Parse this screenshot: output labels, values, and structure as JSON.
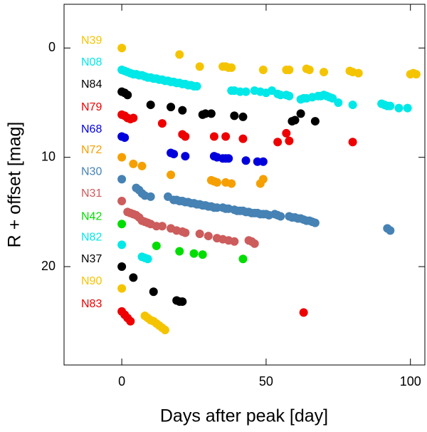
{
  "chart_data": {
    "type": "scatter",
    "xlabel": "Days after peak [day]",
    "ylabel": "R + offset [mag]",
    "xlim": [
      -20,
      105
    ],
    "xticks": [
      0,
      50,
      100
    ],
    "ylim": [
      -4,
      29
    ],
    "yticks": [
      0,
      10,
      20
    ],
    "y_inverted": true,
    "series": [
      {
        "name": "N39",
        "color": "#f5c400",
        "x": [
          0,
          20,
          27,
          35,
          36,
          37,
          38,
          49,
          57,
          58,
          64,
          65,
          70,
          79,
          80,
          82,
          100,
          101,
          102
        ],
        "values": [
          0,
          0.6,
          1.7,
          1.7,
          1.7,
          1.8,
          1.8,
          2.0,
          2.0,
          2.0,
          1.9,
          2.0,
          2.2,
          2.1,
          2.2,
          2.3,
          2.4,
          2.3,
          2.4
        ]
      },
      {
        "name": "N08",
        "color": "#00e8e8",
        "x": [
          0,
          1,
          2,
          3,
          4,
          5,
          6,
          7,
          8,
          9,
          10,
          11,
          12,
          13,
          14,
          15,
          16,
          17,
          18,
          19,
          20,
          21,
          22,
          23,
          24,
          25,
          26,
          38,
          39,
          41,
          43,
          46,
          48,
          50,
          52,
          54,
          55,
          57,
          58,
          62,
          63,
          64,
          66,
          68,
          69,
          70,
          71,
          72,
          73,
          75,
          80,
          90,
          91,
          92,
          93,
          96,
          99
        ],
        "values": [
          2.0,
          2.1,
          2.2,
          2.3,
          2.4,
          2.4,
          2.5,
          2.5,
          2.6,
          2.7,
          2.7,
          2.8,
          2.8,
          2.9,
          2.9,
          3.0,
          3.0,
          3.1,
          3.1,
          3.2,
          3.2,
          3.3,
          3.3,
          3.4,
          3.4,
          3.5,
          3.5,
          3.9,
          3.9,
          4.0,
          4.0,
          3.9,
          4.0,
          4.1,
          3.9,
          4.2,
          4.3,
          4.3,
          4.4,
          4.7,
          4.6,
          4.6,
          4.5,
          4.4,
          4.4,
          4.3,
          4.4,
          4.5,
          4.6,
          5.0,
          5.2,
          5.1,
          5.2,
          5.3,
          5.3,
          5.5,
          5.5
        ]
      },
      {
        "name": "N84",
        "color": "#000000",
        "x": [
          0,
          1,
          2,
          10,
          17,
          21,
          28,
          29,
          31,
          39,
          42,
          59,
          60,
          62,
          67
        ],
        "values": [
          4.0,
          4.1,
          4.3,
          5.2,
          5.4,
          5.7,
          6.1,
          6.0,
          6.0,
          6.2,
          6.3,
          6.7,
          6.6,
          6.0,
          6.7
        ]
      },
      {
        "name": "N79",
        "color": "#ee0000",
        "x": [
          0,
          1,
          2,
          3,
          4,
          14,
          21,
          22,
          32,
          36,
          42,
          54,
          57,
          58,
          80
        ],
        "values": [
          6.1,
          6.2,
          6.4,
          6.5,
          6.4,
          6.9,
          7.9,
          8.1,
          8.1,
          8.1,
          8.3,
          8.6,
          7.8,
          8.5,
          8.6
        ]
      },
      {
        "name": "N68",
        "color": "#0000dd",
        "x": [
          0,
          1,
          17,
          18,
          22,
          32,
          33,
          35,
          36,
          37,
          43,
          47,
          49
        ],
        "values": [
          8.1,
          8.2,
          9.6,
          9.7,
          9.9,
          9.9,
          10.0,
          10.1,
          10.1,
          10.1,
          10.3,
          10.4,
          10.4
        ]
      },
      {
        "name": "N72",
        "color": "#f5a000",
        "x": [
          0,
          4,
          7,
          17,
          31,
          32,
          33,
          36,
          38,
          48,
          49
        ],
        "values": [
          10.0,
          10.6,
          10.8,
          11.6,
          12.1,
          12.2,
          12.3,
          12.3,
          12.4,
          12.4,
          12.0
        ]
      },
      {
        "name": "N30",
        "color": "#4682b4",
        "x": [
          0,
          5,
          6,
          7,
          8,
          10,
          16,
          18,
          19,
          20,
          21,
          22,
          23,
          24,
          25,
          26,
          27,
          28,
          29,
          30,
          31,
          32,
          33,
          35,
          36,
          37,
          39,
          40,
          41,
          42,
          43,
          44,
          45,
          46,
          47,
          48,
          49,
          50,
          51,
          53,
          54,
          55,
          58,
          59,
          60,
          61,
          62,
          63,
          64,
          65,
          66,
          67,
          92,
          93
        ],
        "values": [
          12.0,
          12.8,
          13.0,
          13.3,
          13.5,
          13.6,
          13.6,
          13.9,
          13.9,
          14.0,
          14.0,
          14.1,
          14.1,
          14.2,
          14.2,
          14.3,
          14.3,
          14.4,
          14.4,
          14.5,
          14.5,
          14.6,
          14.6,
          14.6,
          14.7,
          14.7,
          14.8,
          14.9,
          14.9,
          14.9,
          15.0,
          15.0,
          15.1,
          15.1,
          15.1,
          15.2,
          15.2,
          15.2,
          15.3,
          15.2,
          15.3,
          15.4,
          15.4,
          15.5,
          15.5,
          15.6,
          15.6,
          15.7,
          15.8,
          15.8,
          15.9,
          16.0,
          16.5,
          16.7
        ]
      },
      {
        "name": "N31",
        "color": "#cd5c5c",
        "x": [
          0,
          2,
          3,
          4,
          5,
          6,
          7,
          8,
          9,
          10,
          12,
          14,
          17,
          19,
          21,
          22,
          27,
          30,
          33,
          35,
          37,
          39,
          44,
          45,
          46
        ],
        "values": [
          14.0,
          15.0,
          15.1,
          15.2,
          15.3,
          15.5,
          15.8,
          15.9,
          16.0,
          16.1,
          16.3,
          16.3,
          16.5,
          16.7,
          16.8,
          16.9,
          17.0,
          17.2,
          17.4,
          17.5,
          17.6,
          17.7,
          17.6,
          17.7,
          17.9
        ]
      },
      {
        "name": "N42",
        "color": "#00dd00",
        "x": [
          0,
          12,
          20,
          25,
          28,
          42
        ],
        "values": [
          16.1,
          18.1,
          18.6,
          18.8,
          18.9,
          19.3
        ]
      },
      {
        "name": "N82",
        "color": "#00e8e8",
        "x": [
          0,
          7,
          8,
          9
        ],
        "values": [
          18.0,
          19.1,
          19.2,
          19.3
        ]
      },
      {
        "name": "N37",
        "color": "#000000",
        "x": [
          0,
          4,
          11,
          19,
          20,
          21
        ],
        "values": [
          20.0,
          21.0,
          22.3,
          23.1,
          23.2,
          23.2
        ]
      },
      {
        "name": "N90",
        "color": "#f5c400",
        "x": [
          0,
          8,
          9,
          10,
          11,
          12,
          13,
          14,
          15
        ],
        "values": [
          22.0,
          24.5,
          24.7,
          24.9,
          25.0,
          25.2,
          25.4,
          25.6,
          25.8
        ]
      },
      {
        "name": "N83",
        "color": "#ee0000",
        "x": [
          0,
          1,
          2,
          3,
          63
        ],
        "values": [
          24.1,
          24.4,
          24.7,
          25.0,
          24.2
        ]
      }
    ]
  }
}
